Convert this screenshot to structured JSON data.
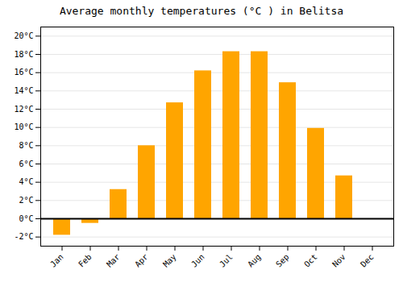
{
  "chart_data": {
    "type": "bar",
    "title": "Average monthly temperatures (°C ) in Belitsa",
    "categories": [
      "Jan",
      "Feb",
      "Mar",
      "Apr",
      "May",
      "Jun",
      "Jul",
      "Aug",
      "Sep",
      "Oct",
      "Nov",
      "Dec"
    ],
    "values": [
      -1.8,
      -0.5,
      3.2,
      8.0,
      12.7,
      16.2,
      18.3,
      18.3,
      14.9,
      9.9,
      4.7,
      0.0
    ],
    "color": "#FFA500",
    "ylim": [
      -3,
      21
    ],
    "yticks": [
      {
        "value": -2,
        "label": "-2°C"
      },
      {
        "value": 0,
        "label": "0°C"
      },
      {
        "value": 2,
        "label": "2°C"
      },
      {
        "value": 4,
        "label": "4°C"
      },
      {
        "value": 6,
        "label": "6°C"
      },
      {
        "value": 8,
        "label": "8°C"
      },
      {
        "value": 10,
        "label": "10°C"
      },
      {
        "value": 12,
        "label": "12°C"
      },
      {
        "value": 14,
        "label": "14°C"
      },
      {
        "value": 16,
        "label": "16°C"
      },
      {
        "value": 18,
        "label": "18°C"
      },
      {
        "value": 20,
        "label": "20°C"
      }
    ],
    "grid": true
  }
}
